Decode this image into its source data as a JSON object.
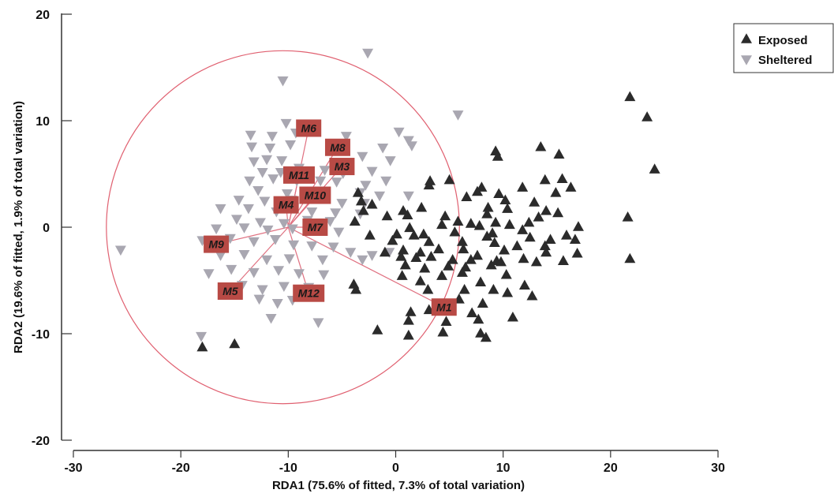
{
  "chart_data": {
    "type": "scatter",
    "xlabel": "RDA1 (75.6% of fitted, 7.3% of total variation)",
    "ylabel": "RDA2 (19.6% of fitted, 1.9% of total variation)",
    "xlim": [
      -30,
      30
    ],
    "ylim": [
      -20,
      20
    ],
    "x_ticks": [
      "-30",
      "-20",
      "-10",
      "0",
      "10",
      "20",
      "30"
    ],
    "y_ticks": [
      "20",
      "10",
      "0",
      "-10",
      "-20"
    ],
    "legend_position": "top-right",
    "grid": false,
    "correlation_circle": {
      "center": [
        -10.5,
        0
      ],
      "radius": 16.5,
      "color": "#e06070"
    },
    "series": [
      {
        "name": "Exposed",
        "marker": "triangle-up",
        "color": "#2b2b2b",
        "points": [
          [
            21.8,
            12.2
          ],
          [
            23.4,
            10.3
          ],
          [
            24.1,
            5.4
          ],
          [
            21.6,
            0.9
          ],
          [
            21.8,
            -3.0
          ],
          [
            13.5,
            7.5
          ],
          [
            15.2,
            6.8
          ],
          [
            9.3,
            7.1
          ],
          [
            9.5,
            6.6
          ],
          [
            15.5,
            4.5
          ],
          [
            16.3,
            3.7
          ],
          [
            13.9,
            4.4
          ],
          [
            11.8,
            3.7
          ],
          [
            14.9,
            3.2
          ],
          [
            8.0,
            3.7
          ],
          [
            7.6,
            3.3
          ],
          [
            9.6,
            3.1
          ],
          [
            6.6,
            2.8
          ],
          [
            10.2,
            2.5
          ],
          [
            12.9,
            2.3
          ],
          [
            8.6,
            1.8
          ],
          [
            10.4,
            1.7
          ],
          [
            14.0,
            1.5
          ],
          [
            8.5,
            1.2
          ],
          [
            15.1,
            1.3
          ],
          [
            3.1,
            3.9
          ],
          [
            3.2,
            4.3
          ],
          [
            5.0,
            4.4
          ],
          [
            -3.5,
            3.2
          ],
          [
            -3.2,
            2.4
          ],
          [
            -2.2,
            2.1
          ],
          [
            -3.0,
            1.5
          ],
          [
            -0.8,
            1.0
          ],
          [
            0.7,
            1.5
          ],
          [
            2.4,
            1.8
          ],
          [
            1.1,
            1.1
          ],
          [
            4.6,
            1.0
          ],
          [
            -3.8,
            0.5
          ],
          [
            7.0,
            0.3
          ],
          [
            9.3,
            0.4
          ],
          [
            10.6,
            0.2
          ],
          [
            12.4,
            0.4
          ],
          [
            13.3,
            0.9
          ],
          [
            17.0,
            0.0
          ],
          [
            1.3,
            -0.1
          ],
          [
            4.3,
            0.2
          ],
          [
            5.8,
            0.5
          ],
          [
            7.8,
            0.1
          ],
          [
            11.8,
            -0.3
          ],
          [
            15.9,
            -0.8
          ],
          [
            0.1,
            -0.7
          ],
          [
            -2.4,
            -0.8
          ],
          [
            1.7,
            -0.8
          ],
          [
            2.6,
            -0.7
          ],
          [
            5.5,
            -0.5
          ],
          [
            8.5,
            -0.9
          ],
          [
            9.0,
            -0.6
          ],
          [
            12.5,
            -1.0
          ],
          [
            14.4,
            -1.2
          ],
          [
            16.7,
            -1.2
          ],
          [
            -0.3,
            -1.3
          ],
          [
            3.1,
            -1.4
          ],
          [
            6.2,
            -1.4
          ],
          [
            9.2,
            -1.5
          ],
          [
            11.3,
            -1.8
          ],
          [
            13.9,
            -1.8
          ],
          [
            0.7,
            -2.2
          ],
          [
            -1.0,
            -2.4
          ],
          [
            2.3,
            -2.4
          ],
          [
            4.0,
            -2.1
          ],
          [
            6.3,
            -2.1
          ],
          [
            7.6,
            -2.7
          ],
          [
            10.1,
            -2.2
          ],
          [
            14.0,
            -2.4
          ],
          [
            16.9,
            -2.5
          ],
          [
            0.5,
            -2.8
          ],
          [
            1.9,
            -2.9
          ],
          [
            3.3,
            -2.8
          ],
          [
            5.3,
            -3.1
          ],
          [
            7.0,
            -3.1
          ],
          [
            9.4,
            -3.2
          ],
          [
            11.9,
            -3.0
          ],
          [
            13.1,
            -3.3
          ],
          [
            15.6,
            -3.2
          ],
          [
            0.9,
            -3.6
          ],
          [
            2.7,
            -3.9
          ],
          [
            4.9,
            -3.7
          ],
          [
            6.5,
            -3.8
          ],
          [
            8.9,
            -3.6
          ],
          [
            9.8,
            -3.3
          ],
          [
            6.2,
            -4.3
          ],
          [
            4.3,
            -4.6
          ],
          [
            0.6,
            -4.6
          ],
          [
            10.3,
            -4.5
          ],
          [
            2.3,
            -5.1
          ],
          [
            7.9,
            -5.2
          ],
          [
            12.0,
            -5.5
          ],
          [
            3.0,
            -5.9
          ],
          [
            6.4,
            -5.9
          ],
          [
            9.1,
            -5.9
          ],
          [
            -3.9,
            -5.4
          ],
          [
            -3.7,
            -5.9
          ],
          [
            10.4,
            -6.2
          ],
          [
            12.7,
            -6.5
          ],
          [
            5.9,
            -6.8
          ],
          [
            8.1,
            -7.2
          ],
          [
            3.1,
            -7.8
          ],
          [
            1.4,
            -8.0
          ],
          [
            7.1,
            -8.1
          ],
          [
            1.2,
            -8.8
          ],
          [
            10.9,
            -8.5
          ],
          [
            4.7,
            -8.9
          ],
          [
            7.7,
            -8.7
          ],
          [
            -1.7,
            -9.7
          ],
          [
            4.4,
            -9.9
          ],
          [
            1.2,
            -10.2
          ],
          [
            7.9,
            -10.0
          ],
          [
            8.4,
            -10.4
          ],
          [
            -18.0,
            -11.3
          ],
          [
            -15.0,
            -11.0
          ]
        ]
      },
      {
        "name": "Sheltered",
        "marker": "triangle-down",
        "color": "#a9a7b1",
        "points": [
          [
            -2.6,
            16.4
          ],
          [
            -10.5,
            13.8
          ],
          [
            5.8,
            10.6
          ],
          [
            -10.2,
            9.8
          ],
          [
            -13.5,
            8.7
          ],
          [
            -11.5,
            8.6
          ],
          [
            -9.3,
            8.9
          ],
          [
            -4.6,
            8.6
          ],
          [
            0.3,
            9.0
          ],
          [
            1.2,
            8.2
          ],
          [
            1.5,
            7.7
          ],
          [
            -13.4,
            7.6
          ],
          [
            -11.7,
            7.5
          ],
          [
            -9.8,
            7.8
          ],
          [
            -1.2,
            7.5
          ],
          [
            -13.2,
            6.2
          ],
          [
            -12.0,
            6.4
          ],
          [
            -10.6,
            6.3
          ],
          [
            -3.1,
            6.7
          ],
          [
            -0.5,
            6.3
          ],
          [
            -12.4,
            5.2
          ],
          [
            -10.7,
            5.2
          ],
          [
            -9.0,
            5.6
          ],
          [
            -6.6,
            5.4
          ],
          [
            -4.9,
            5.1
          ],
          [
            -2.2,
            5.3
          ],
          [
            -13.6,
            4.4
          ],
          [
            -11.4,
            4.6
          ],
          [
            -9.2,
            4.4
          ],
          [
            -7.0,
            4.4
          ],
          [
            -5.5,
            4.3
          ],
          [
            -2.8,
            4.0
          ],
          [
            -0.9,
            4.4
          ],
          [
            -12.8,
            3.5
          ],
          [
            -10.1,
            3.2
          ],
          [
            -7.3,
            3.1
          ],
          [
            -3.3,
            3.3
          ],
          [
            -1.5,
            3.0
          ],
          [
            1.2,
            3.0
          ],
          [
            -14.6,
            2.6
          ],
          [
            -12.2,
            2.5
          ],
          [
            -9.7,
            2.6
          ],
          [
            -6.9,
            2.8
          ],
          [
            -5.0,
            2.3
          ],
          [
            -2.9,
            2.3
          ],
          [
            -16.3,
            1.8
          ],
          [
            -13.7,
            1.8
          ],
          [
            -11.1,
            1.5
          ],
          [
            -9.5,
            1.9
          ],
          [
            -7.8,
            1.5
          ],
          [
            -5.6,
            1.4
          ],
          [
            -3.3,
            1.3
          ],
          [
            -14.8,
            0.8
          ],
          [
            -12.6,
            0.5
          ],
          [
            -10.4,
            0.4
          ],
          [
            -8.2,
            0.7
          ],
          [
            -6.1,
            0.6
          ],
          [
            -16.7,
            -0.1
          ],
          [
            -14.1,
            0.0
          ],
          [
            -11.9,
            -0.2
          ],
          [
            -9.6,
            -0.1
          ],
          [
            -7.5,
            -0.2
          ],
          [
            -5.3,
            -0.4
          ],
          [
            -25.6,
            -2.1
          ],
          [
            -18.0,
            -1.2
          ],
          [
            -15.4,
            -1.0
          ],
          [
            -13.2,
            -1.3
          ],
          [
            -11.2,
            -1.1
          ],
          [
            -9.5,
            -1.6
          ],
          [
            -7.8,
            -1.7
          ],
          [
            -5.8,
            -1.8
          ],
          [
            -4.2,
            -2.3
          ],
          [
            -2.2,
            -2.6
          ],
          [
            -0.6,
            -2.3
          ],
          [
            -16.3,
            -2.6
          ],
          [
            -14.1,
            -2.5
          ],
          [
            -12.0,
            -3.0
          ],
          [
            -9.9,
            -2.9
          ],
          [
            -6.8,
            -3.0
          ],
          [
            -3.1,
            -3.0
          ],
          [
            -17.4,
            -4.3
          ],
          [
            -15.3,
            -3.9
          ],
          [
            -13.2,
            -4.2
          ],
          [
            -10.9,
            -4.0
          ],
          [
            -9.0,
            -4.3
          ],
          [
            -6.7,
            -4.4
          ],
          [
            -14.3,
            -5.4
          ],
          [
            -12.4,
            -5.8
          ],
          [
            -10.4,
            -5.5
          ],
          [
            -8.1,
            -5.6
          ],
          [
            -12.7,
            -6.7
          ],
          [
            -11.0,
            -7.1
          ],
          [
            -9.6,
            -6.8
          ],
          [
            -11.6,
            -8.5
          ],
          [
            -7.2,
            -8.9
          ],
          [
            -18.1,
            -10.2
          ]
        ]
      }
    ],
    "vectors": {
      "origin": [
        -10,
        0
      ],
      "arrow_color": "#e07080",
      "label_bg": "#b84a45",
      "items": [
        {
          "label": "M1",
          "end": [
            4.5,
            -7.5
          ]
        },
        {
          "label": "M3",
          "end": [
            -5.0,
            5.7
          ]
        },
        {
          "label": "M4",
          "end": [
            -10.2,
            2.1
          ]
        },
        {
          "label": "M5",
          "end": [
            -15.4,
            -6.0
          ]
        },
        {
          "label": "M6",
          "end": [
            -8.1,
            9.3
          ]
        },
        {
          "label": "M7",
          "end": [
            -7.5,
            0.0
          ]
        },
        {
          "label": "M8",
          "end": [
            -5.4,
            7.5
          ]
        },
        {
          "label": "M9",
          "end": [
            -16.7,
            -1.6
          ]
        },
        {
          "label": "M10",
          "end": [
            -7.5,
            3.0
          ]
        },
        {
          "label": "M11",
          "end": [
            -9.0,
            4.9
          ]
        },
        {
          "label": "M12",
          "end": [
            -8.1,
            -6.2
          ]
        }
      ]
    }
  }
}
